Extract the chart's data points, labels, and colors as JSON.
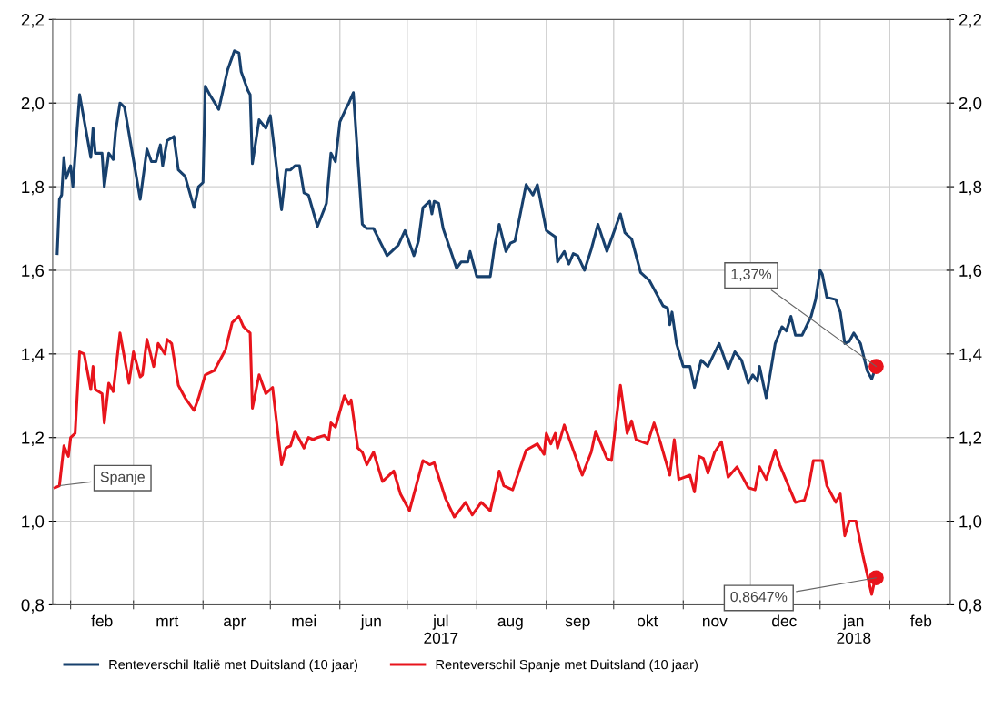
{
  "chart_data": {
    "type": "line",
    "xlim": [
      "2017-01-24",
      "2018-02-28"
    ],
    "xticks": [
      {
        "value": "2017-02-01",
        "label": null
      },
      {
        "value": "2017-03-01",
        "label": null
      },
      {
        "value": "2017-04-01",
        "label": null
      },
      {
        "value": "2017-05-01",
        "label": null
      },
      {
        "value": "2017-06-01",
        "label": null
      },
      {
        "value": "2017-07-01",
        "label": null
      },
      {
        "value": "2017-08-01",
        "label": null
      },
      {
        "value": "2017-09-01",
        "label": null
      },
      {
        "value": "2017-10-01",
        "label": null
      },
      {
        "value": "2017-11-01",
        "label": null
      },
      {
        "value": "2017-12-01",
        "label": null
      },
      {
        "value": "2018-01-01",
        "label": null
      },
      {
        "value": "2018-02-01",
        "label": null
      },
      {
        "value": "2017-02-15",
        "label": "feb"
      },
      {
        "value": "2017-03-16",
        "label": "mrt"
      },
      {
        "value": "2017-04-15",
        "label": "apr"
      },
      {
        "value": "2017-05-16",
        "label": "mei"
      },
      {
        "value": "2017-06-15",
        "label": "jun"
      },
      {
        "value": "2017-07-16",
        "label": "jul\n2017"
      },
      {
        "value": "2017-08-16",
        "label": "aug"
      },
      {
        "value": "2017-09-15",
        "label": "sep"
      },
      {
        "value": "2017-10-16",
        "label": "okt"
      },
      {
        "value": "2017-11-15",
        "label": "nov"
      },
      {
        "value": "2017-12-16",
        "label": "dec"
      },
      {
        "value": "2018-01-16",
        "label": "jan\n2018"
      },
      {
        "value": "2018-02-15",
        "label": "feb"
      }
    ],
    "ylim": [
      0.8,
      2.2
    ],
    "yticks": [
      {
        "value": 0.8,
        "label": "0,8"
      },
      {
        "value": 1.0,
        "label": "1,0"
      },
      {
        "value": 1.2,
        "label": "1,2"
      },
      {
        "value": 1.4,
        "label": "1,4"
      },
      {
        "value": 1.6,
        "label": "1,6"
      },
      {
        "value": 1.8,
        "label": "1,8"
      },
      {
        "value": 2.0,
        "label": "2,0"
      },
      {
        "value": 2.2,
        "label": "2,2"
      }
    ],
    "y2lim": [
      0.8,
      2.2
    ],
    "y2ticks": [
      {
        "value": 0.8,
        "label": "0,8"
      },
      {
        "value": 1.0,
        "label": "1,0"
      },
      {
        "value": 1.2,
        "label": "1,2"
      },
      {
        "value": 1.4,
        "label": "1,4"
      },
      {
        "value": 1.6,
        "label": "1,6"
      },
      {
        "value": 1.8,
        "label": "1,8"
      },
      {
        "value": 2.0,
        "label": "2,0"
      },
      {
        "value": 2.2,
        "label": "2,2"
      }
    ],
    "grid": true,
    "legend": "bottom",
    "series": [
      {
        "name": "Renteverschil Italië met Duitsland (10 jaar)",
        "color": "#17406d",
        "x": [
          "2017-01-26",
          "2017-01-27",
          "2017-01-28",
          "2017-01-29",
          "2017-01-30",
          "2017-02-01",
          "2017-02-02",
          "2017-02-05",
          "2017-02-10",
          "2017-02-11",
          "2017-02-12",
          "2017-02-15",
          "2017-02-16",
          "2017-02-18",
          "2017-02-20",
          "2017-02-21",
          "2017-02-23",
          "2017-02-25",
          "2017-03-04",
          "2017-03-07",
          "2017-03-09",
          "2017-03-11",
          "2017-03-13",
          "2017-03-14",
          "2017-03-16",
          "2017-03-19",
          "2017-03-21",
          "2017-03-24",
          "2017-03-28",
          "2017-03-30",
          "2017-04-01",
          "2017-04-02",
          "2017-04-04",
          "2017-04-08",
          "2017-04-12",
          "2017-04-15",
          "2017-04-17",
          "2017-04-18",
          "2017-04-21",
          "2017-04-22",
          "2017-04-23",
          "2017-04-26",
          "2017-04-29",
          "2017-05-01",
          "2017-05-06",
          "2017-05-08",
          "2017-05-10",
          "2017-05-12",
          "2017-05-14",
          "2017-05-16",
          "2017-05-18",
          "2017-05-22",
          "2017-05-26",
          "2017-05-28",
          "2017-05-30",
          "2017-06-01",
          "2017-06-04",
          "2017-06-05",
          "2017-06-07",
          "2017-06-11",
          "2017-06-13",
          "2017-06-16",
          "2017-06-22",
          "2017-06-24",
          "2017-06-27",
          "2017-06-30",
          "2017-07-04",
          "2017-07-06",
          "2017-07-08",
          "2017-07-11",
          "2017-07-12",
          "2017-07-13",
          "2017-07-15",
          "2017-07-17",
          "2017-07-23",
          "2017-07-25",
          "2017-07-28",
          "2017-07-29",
          "2017-08-01",
          "2017-08-07",
          "2017-08-09",
          "2017-08-11",
          "2017-08-14",
          "2017-08-16",
          "2017-08-18",
          "2017-08-23",
          "2017-08-26",
          "2017-08-28",
          "2017-09-01",
          "2017-09-05",
          "2017-09-06",
          "2017-09-09",
          "2017-09-11",
          "2017-09-13",
          "2017-09-15",
          "2017-09-18",
          "2017-09-21",
          "2017-09-24",
          "2017-09-28",
          "2017-10-01",
          "2017-10-04",
          "2017-10-06",
          "2017-10-09",
          "2017-10-13",
          "2017-10-17",
          "2017-10-23",
          "2017-10-25",
          "2017-10-26",
          "2017-10-27",
          "2017-10-29",
          "2017-11-01",
          "2017-11-04",
          "2017-11-06",
          "2017-11-09",
          "2017-11-12",
          "2017-11-17",
          "2017-11-21",
          "2017-11-24",
          "2017-11-27",
          "2017-11-30",
          "2017-12-02",
          "2017-12-04",
          "2017-12-05",
          "2017-12-08",
          "2017-12-12",
          "2017-12-15",
          "2017-12-17",
          "2017-12-19",
          "2017-12-21",
          "2017-12-24",
          "2017-12-28",
          "2017-12-30",
          "2018-01-01",
          "2018-01-02",
          "2018-01-04",
          "2018-01-08",
          "2018-01-10",
          "2018-01-12",
          "2018-01-14",
          "2018-01-16",
          "2018-01-19",
          "2018-01-22",
          "2018-01-24",
          "2018-01-25"
        ],
        "values": [
          1.64,
          1.77,
          1.78,
          1.87,
          1.82,
          1.85,
          1.8,
          2.02,
          1.87,
          1.94,
          1.88,
          1.88,
          1.8,
          1.88,
          1.865,
          1.93,
          2.0,
          1.99,
          1.77,
          1.89,
          1.86,
          1.86,
          1.9,
          1.85,
          1.91,
          1.92,
          1.84,
          1.825,
          1.75,
          1.8,
          1.81,
          2.04,
          2.02,
          1.985,
          2.08,
          2.125,
          2.12,
          2.075,
          2.03,
          2.02,
          1.855,
          1.96,
          1.94,
          1.97,
          1.745,
          1.84,
          1.84,
          1.85,
          1.85,
          1.785,
          1.78,
          1.705,
          1.76,
          1.88,
          1.86,
          1.955,
          1.99,
          2.0,
          2.025,
          1.71,
          1.7,
          1.7,
          1.635,
          1.645,
          1.66,
          1.695,
          1.635,
          1.67,
          1.75,
          1.765,
          1.735,
          1.765,
          1.76,
          1.7,
          1.605,
          1.62,
          1.62,
          1.645,
          1.585,
          1.585,
          1.66,
          1.71,
          1.645,
          1.665,
          1.67,
          1.805,
          1.78,
          1.805,
          1.695,
          1.68,
          1.62,
          1.645,
          1.615,
          1.64,
          1.635,
          1.6,
          1.65,
          1.71,
          1.645,
          1.69,
          1.735,
          1.69,
          1.675,
          1.595,
          1.575,
          1.515,
          1.51,
          1.47,
          1.5,
          1.425,
          1.37,
          1.37,
          1.32,
          1.385,
          1.37,
          1.425,
          1.365,
          1.405,
          1.385,
          1.33,
          1.35,
          1.335,
          1.37,
          1.295,
          1.425,
          1.465,
          1.455,
          1.49,
          1.445,
          1.445,
          1.49,
          1.53,
          1.6,
          1.59,
          1.535,
          1.53,
          1.5,
          1.425,
          1.43,
          1.45,
          1.425,
          1.36,
          1.34,
          1.355
        ]
      },
      {
        "name": "Renteverschil Spanje met Duitsland (10 jaar)",
        "color": "#e8141c",
        "x": [
          "2017-01-25",
          "2017-01-27",
          "2017-01-29",
          "2017-01-31",
          "2017-02-01",
          "2017-02-03",
          "2017-02-05",
          "2017-02-07",
          "2017-02-10",
          "2017-02-11",
          "2017-02-12",
          "2017-02-15",
          "2017-02-16",
          "2017-02-18",
          "2017-02-20",
          "2017-02-23",
          "2017-02-27",
          "2017-03-01",
          "2017-03-04",
          "2017-03-05",
          "2017-03-07",
          "2017-03-10",
          "2017-03-12",
          "2017-03-15",
          "2017-03-16",
          "2017-03-18",
          "2017-03-21",
          "2017-03-24",
          "2017-03-28",
          "2017-03-30",
          "2017-04-02",
          "2017-04-06",
          "2017-04-11",
          "2017-04-14",
          "2017-04-17",
          "2017-04-19",
          "2017-04-22",
          "2017-04-23",
          "2017-04-26",
          "2017-04-29",
          "2017-05-02",
          "2017-05-06",
          "2017-05-08",
          "2017-05-10",
          "2017-05-12",
          "2017-05-16",
          "2017-05-18",
          "2017-05-20",
          "2017-05-22",
          "2017-05-25",
          "2017-05-27",
          "2017-05-28",
          "2017-05-30",
          "2017-06-03",
          "2017-06-05",
          "2017-06-06",
          "2017-06-09",
          "2017-06-11",
          "2017-06-13",
          "2017-06-16",
          "2017-06-20",
          "2017-06-25",
          "2017-06-28",
          "2017-07-02",
          "2017-07-08",
          "2017-07-11",
          "2017-07-13",
          "2017-07-18",
          "2017-07-22",
          "2017-07-27",
          "2017-07-30",
          "2017-08-03",
          "2017-08-07",
          "2017-08-11",
          "2017-08-13",
          "2017-08-17",
          "2017-08-23",
          "2017-08-28",
          "2017-08-31",
          "2017-09-01",
          "2017-09-03",
          "2017-09-05",
          "2017-09-06",
          "2017-09-09",
          "2017-09-13",
          "2017-09-17",
          "2017-09-21",
          "2017-09-23",
          "2017-09-28",
          "2017-09-30",
          "2017-10-04",
          "2017-10-07",
          "2017-10-09",
          "2017-10-11",
          "2017-10-16",
          "2017-10-19",
          "2017-10-22",
          "2017-10-26",
          "2017-10-28",
          "2017-10-30",
          "2017-11-04",
          "2017-11-06",
          "2017-11-08",
          "2017-11-10",
          "2017-11-12",
          "2017-11-15",
          "2017-11-18",
          "2017-11-21",
          "2017-11-25",
          "2017-11-30",
          "2017-12-03",
          "2017-12-05",
          "2017-12-08",
          "2017-12-12",
          "2017-12-14",
          "2017-12-21",
          "2017-12-25",
          "2017-12-27",
          "2017-12-29",
          "2018-01-02",
          "2018-01-04",
          "2018-01-08",
          "2018-01-10",
          "2018-01-12",
          "2018-01-14",
          "2018-01-17",
          "2018-01-20",
          "2018-01-24",
          "2018-01-25"
        ],
        "values": [
          1.08,
          1.085,
          1.18,
          1.155,
          1.2,
          1.21,
          1.405,
          1.4,
          1.315,
          1.37,
          1.315,
          1.305,
          1.235,
          1.33,
          1.31,
          1.45,
          1.33,
          1.405,
          1.345,
          1.35,
          1.435,
          1.37,
          1.425,
          1.4,
          1.435,
          1.425,
          1.325,
          1.295,
          1.265,
          1.295,
          1.35,
          1.36,
          1.41,
          1.475,
          1.49,
          1.465,
          1.45,
          1.27,
          1.35,
          1.305,
          1.32,
          1.135,
          1.175,
          1.18,
          1.215,
          1.175,
          1.2,
          1.195,
          1.2,
          1.205,
          1.195,
          1.235,
          1.225,
          1.3,
          1.28,
          1.29,
          1.175,
          1.165,
          1.135,
          1.165,
          1.095,
          1.12,
          1.065,
          1.025,
          1.145,
          1.135,
          1.14,
          1.055,
          1.01,
          1.045,
          1.015,
          1.045,
          1.025,
          1.12,
          1.085,
          1.075,
          1.17,
          1.185,
          1.16,
          1.21,
          1.185,
          1.21,
          1.175,
          1.23,
          1.17,
          1.11,
          1.165,
          1.215,
          1.15,
          1.145,
          1.325,
          1.21,
          1.24,
          1.195,
          1.185,
          1.235,
          1.185,
          1.11,
          1.195,
          1.1,
          1.11,
          1.07,
          1.155,
          1.15,
          1.115,
          1.165,
          1.19,
          1.105,
          1.13,
          1.08,
          1.075,
          1.13,
          1.1,
          1.17,
          1.135,
          1.045,
          1.05,
          1.085,
          1.145,
          1.145,
          1.085,
          1.045,
          1.065,
          0.965,
          1.0,
          1.0,
          0.92,
          0.825,
          0.85
        ]
      },
      {
        "type": "scatter",
        "color": "#e8141c",
        "x": [
          "2018-01-26",
          "2018-01-26"
        ],
        "values": [
          1.37,
          0.8647
        ]
      }
    ],
    "annotations": [
      {
        "text": "Spanje",
        "x": "2017-01-27",
        "y": 1.085
      },
      {
        "text": "1,37%",
        "x": "2018-01-26",
        "y": 1.37
      },
      {
        "text": "0,8647%",
        "x": "2018-01-26",
        "y": 0.8647
      }
    ]
  }
}
